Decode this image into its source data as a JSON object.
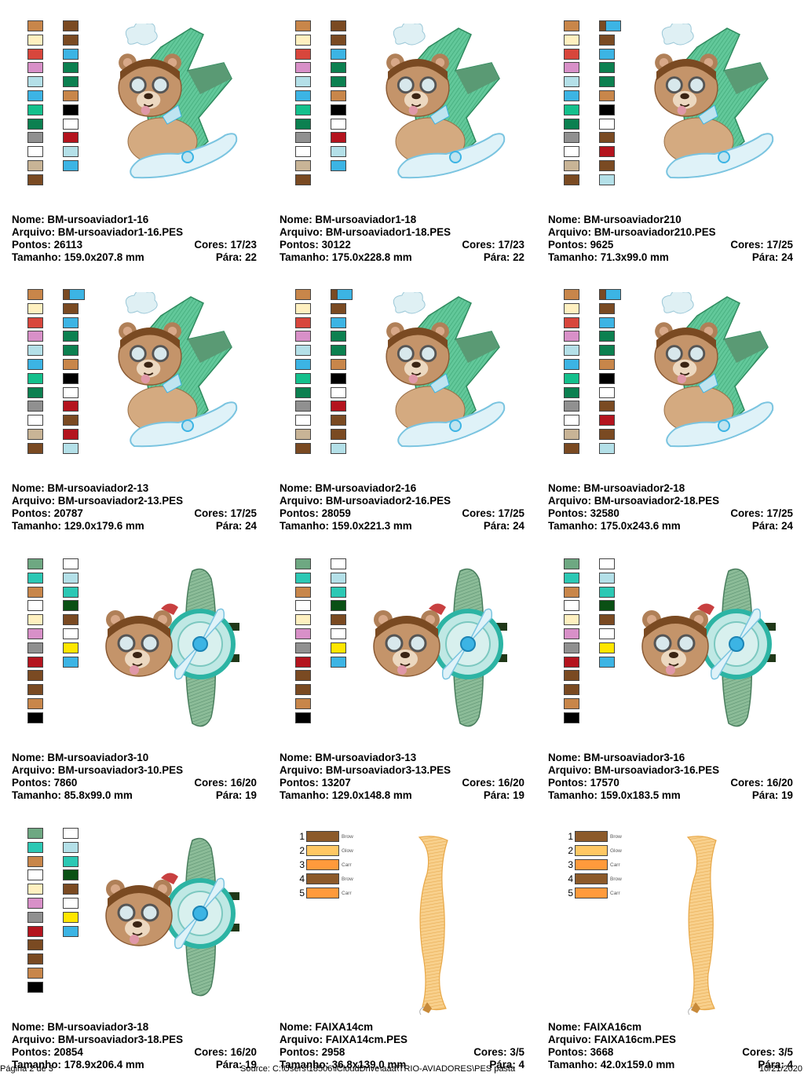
{
  "designs": [
    {
      "nome_label": "Nome:",
      "nome": "BM-ursoaviador1-16",
      "arquivo_label": "Arquivo:",
      "arquivo": "BM-ursoaviador1-16.PES",
      "pontos_label": "Pontos:",
      "pontos": "26113",
      "cores_label": "Cores:",
      "cores": "17/23",
      "tamanho_label": "Tamanho:",
      "tamanho": "159.0x207.8 mm",
      "para_label": "Pára:",
      "para": "22",
      "art": "bear-plane-diagonal",
      "swatches": [
        [
          "#c8864a",
          "#fff0c0",
          "#d8463c",
          "#d890c8",
          "#b4e0e8",
          "#3cb4e4",
          "#14c08c",
          "#0c8050",
          "#909090",
          "#ffffff",
          "#c8b496",
          "#7a4a22"
        ],
        [
          "#7a4a22",
          "#7a4a22",
          "#3cb4e4",
          "#0c8050",
          "#0c8050",
          "#c8864a",
          "#000000",
          "#ffffff",
          "#b4141e",
          "#b4e0e8",
          "#3cb4e4"
        ]
      ]
    },
    {
      "nome_label": "Nome:",
      "nome": "BM-ursoaviador1-18",
      "arquivo_label": "Arquivo:",
      "arquivo": "BM-ursoaviador1-18.PES",
      "pontos_label": "Pontos:",
      "pontos": "30122",
      "cores_label": "Cores:",
      "cores": "17/23",
      "tamanho_label": "Tamanho:",
      "tamanho": "175.0x228.8 mm",
      "para_label": "Pára:",
      "para": "22",
      "art": "bear-plane-diagonal",
      "swatches": [
        [
          "#c8864a",
          "#fff0c0",
          "#d8463c",
          "#d890c8",
          "#b4e0e8",
          "#3cb4e4",
          "#14c08c",
          "#0c8050",
          "#909090",
          "#ffffff",
          "#c8b496",
          "#7a4a22"
        ],
        [
          "#7a4a22",
          "#7a4a22",
          "#3cb4e4",
          "#0c8050",
          "#0c8050",
          "#c8864a",
          "#000000",
          "#ffffff",
          "#b4141e",
          "#b4e0e8",
          "#3cb4e4"
        ]
      ]
    },
    {
      "nome_label": "Nome:",
      "nome": "BM-ursoaviador210",
      "arquivo_label": "Arquivo:",
      "arquivo": "BM-ursoaviador210.PES",
      "pontos_label": "Pontos:",
      "pontos": "9625",
      "cores_label": "Cores:",
      "cores": "17/25",
      "tamanho_label": "Tamanho:",
      "tamanho": "71.3x99.0 mm",
      "para_label": "Pára:",
      "para": "24",
      "art": "bear-plane-diagonal",
      "swatches": [
        [
          "#c8864a",
          "#fff0c0",
          "#d8463c",
          "#d890c8",
          "#b4e0e8",
          "#3cb4e4",
          "#14c08c",
          "#0c8050",
          "#909090",
          "#ffffff",
          "#c8b496",
          "#7a4a22"
        ],
        [
          "#7a4a22",
          "#7a4a22",
          "#3cb4e4",
          "#0c8050",
          "#0c8050",
          "#c8864a",
          "#000000",
          "#ffffff",
          "#7a4a22",
          "#b4141e",
          "#7a4a22",
          "#b4e0e8"
        ],
        [
          "#3cb4e4"
        ]
      ]
    },
    {
      "nome_label": "Nome:",
      "nome": "BM-ursoaviador2-13",
      "arquivo_label": "Arquivo:",
      "arquivo": "BM-ursoaviador2-13.PES",
      "pontos_label": "Pontos:",
      "pontos": "20787",
      "cores_label": "Cores:",
      "cores": "17/25",
      "tamanho_label": "Tamanho:",
      "tamanho": "129.0x179.6 mm",
      "para_label": "Pára:",
      "para": "24",
      "art": "bear-plane-diagonal",
      "swatches": [
        [
          "#c8864a",
          "#fff0c0",
          "#d8463c",
          "#d890c8",
          "#b4e0e8",
          "#3cb4e4",
          "#14c08c",
          "#0c8050",
          "#909090",
          "#ffffff",
          "#c8b496",
          "#7a4a22"
        ],
        [
          "#7a4a22",
          "#7a4a22",
          "#3cb4e4",
          "#0c8050",
          "#0c8050",
          "#c8864a",
          "#000000",
          "#ffffff",
          "#b4141e",
          "#7a4a22",
          "#b4141e",
          "#b4e0e8"
        ],
        [
          "#3cb4e4"
        ]
      ]
    },
    {
      "nome_label": "Nome:",
      "nome": "BM-ursoaviador2-16",
      "arquivo_label": "Arquivo:",
      "arquivo": "BM-ursoaviador2-16.PES",
      "pontos_label": "Pontos:",
      "pontos": "28059",
      "cores_label": "Cores:",
      "cores": "17/25",
      "tamanho_label": "Tamanho:",
      "tamanho": "159.0x221.3 mm",
      "para_label": "Pára:",
      "para": "24",
      "art": "bear-plane-diagonal",
      "swatches": [
        [
          "#c8864a",
          "#fff0c0",
          "#d8463c",
          "#d890c8",
          "#b4e0e8",
          "#3cb4e4",
          "#14c08c",
          "#0c8050",
          "#909090",
          "#ffffff",
          "#c8b496",
          "#7a4a22"
        ],
        [
          "#7a4a22",
          "#7a4a22",
          "#3cb4e4",
          "#0c8050",
          "#0c8050",
          "#c8864a",
          "#000000",
          "#ffffff",
          "#b4141e",
          "#7a4a22",
          "#7a4a22",
          "#b4e0e8"
        ],
        [
          "#3cb4e4"
        ]
      ]
    },
    {
      "nome_label": "Nome:",
      "nome": "BM-ursoaviador2-18",
      "arquivo_label": "Arquivo:",
      "arquivo": "BM-ursoaviador2-18.PES",
      "pontos_label": "Pontos:",
      "pontos": "32580",
      "cores_label": "Cores:",
      "cores": "17/25",
      "tamanho_label": "Tamanho:",
      "tamanho": "175.0x243.6 mm",
      "para_label": "Pára:",
      "para": "24",
      "art": "bear-plane-diagonal",
      "swatches": [
        [
          "#c8864a",
          "#fff0c0",
          "#d8463c",
          "#d890c8",
          "#b4e0e8",
          "#3cb4e4",
          "#14c08c",
          "#0c8050",
          "#909090",
          "#ffffff",
          "#c8b496",
          "#7a4a22"
        ],
        [
          "#7a4a22",
          "#7a4a22",
          "#3cb4e4",
          "#0c8050",
          "#0c8050",
          "#c8864a",
          "#000000",
          "#ffffff",
          "#7a4a22",
          "#b4141e",
          "#7a4a22",
          "#b4e0e8"
        ],
        [
          "#3cb4e4"
        ]
      ]
    },
    {
      "nome_label": "Nome:",
      "nome": "BM-ursoaviador3-10",
      "arquivo_label": "Arquivo:",
      "arquivo": "BM-ursoaviador3-10.PES",
      "pontos_label": "Pontos:",
      "pontos": "7860",
      "cores_label": "Cores:",
      "cores": "16/20",
      "tamanho_label": "Tamanho:",
      "tamanho": "85.8x99.0 mm",
      "para_label": "Pára:",
      "para": "19",
      "art": "bear-plane-front",
      "swatches": [
        [
          "#6ea882",
          "#2cc8b4",
          "#c8864a",
          "#ffffff",
          "#fff0c0",
          "#d890c8",
          "#909090",
          "#b4141e",
          "#7a4a22",
          "#7a4a22",
          "#c8864a",
          "#000000"
        ],
        [
          "#ffffff",
          "#b4e0e8",
          "#2cc8b4",
          "#0a5014",
          "#7a4a22",
          "#ffffff",
          "#ffe600",
          "#3cb4e4"
        ]
      ]
    },
    {
      "nome_label": "Nome:",
      "nome": "BM-ursoaviador3-13",
      "arquivo_label": "Arquivo:",
      "arquivo": "BM-ursoaviador3-13.PES",
      "pontos_label": "Pontos:",
      "pontos": "13207",
      "cores_label": "Cores:",
      "cores": "16/20",
      "tamanho_label": "Tamanho:",
      "tamanho": "129.0x148.8 mm",
      "para_label": "Pára:",
      "para": "19",
      "art": "bear-plane-front",
      "swatches": [
        [
          "#6ea882",
          "#2cc8b4",
          "#c8864a",
          "#ffffff",
          "#fff0c0",
          "#d890c8",
          "#909090",
          "#b4141e",
          "#7a4a22",
          "#7a4a22",
          "#c8864a",
          "#000000"
        ],
        [
          "#ffffff",
          "#b4e0e8",
          "#2cc8b4",
          "#0a5014",
          "#7a4a22",
          "#ffffff",
          "#ffe600",
          "#3cb4e4"
        ]
      ]
    },
    {
      "nome_label": "Nome:",
      "nome": "BM-ursoaviador3-16",
      "arquivo_label": "Arquivo:",
      "arquivo": "BM-ursoaviador3-16.PES",
      "pontos_label": "Pontos:",
      "pontos": "17570",
      "cores_label": "Cores:",
      "cores": "16/20",
      "tamanho_label": "Tamanho:",
      "tamanho": "159.0x183.5 mm",
      "para_label": "Pára:",
      "para": "19",
      "art": "bear-plane-front",
      "swatches": [
        [
          "#6ea882",
          "#2cc8b4",
          "#c8864a",
          "#ffffff",
          "#fff0c0",
          "#d890c8",
          "#909090",
          "#b4141e",
          "#7a4a22",
          "#7a4a22",
          "#c8864a",
          "#000000"
        ],
        [
          "#ffffff",
          "#b4e0e8",
          "#2cc8b4",
          "#0a5014",
          "#7a4a22",
          "#ffffff",
          "#ffe600",
          "#3cb4e4"
        ]
      ]
    },
    {
      "nome_label": "Nome:",
      "nome": "BM-ursoaviador3-18",
      "arquivo_label": "Arquivo:",
      "arquivo": "BM-ursoaviador3-18.PES",
      "pontos_label": "Pontos:",
      "pontos": "20854",
      "cores_label": "Cores:",
      "cores": "16/20",
      "tamanho_label": "Tamanho:",
      "tamanho": "178.9x206.4 mm",
      "para_label": "Pára:",
      "para": "19",
      "art": "bear-plane-front",
      "swatches": [
        [
          "#6ea882",
          "#2cc8b4",
          "#c8864a",
          "#ffffff",
          "#fff0c0",
          "#d890c8",
          "#909090",
          "#b4141e",
          "#7a4a22",
          "#7a4a22",
          "#c8864a",
          "#000000"
        ],
        [
          "#ffffff",
          "#b4e0e8",
          "#2cc8b4",
          "#0a5014",
          "#7a4a22",
          "#ffffff",
          "#ffe600",
          "#3cb4e4"
        ]
      ]
    },
    {
      "nome_label": "Nome:",
      "nome": "FAIXA14cm",
      "arquivo_label": "Arquivo:",
      "arquivo": "FAIXA14cm.PES",
      "pontos_label": "Pontos:",
      "pontos": "2958",
      "cores_label": "Cores:",
      "cores": "3/5",
      "tamanho_label": "Tamanho:",
      "tamanho": "36.8x139.0 mm",
      "para_label": "Pára:",
      "para": "4",
      "art": "banner",
      "numbered": [
        {
          "n": "1",
          "color": "#8c5a2a",
          "label": "Brow"
        },
        {
          "n": "2",
          "color": "#ffc864",
          "label": "Glow"
        },
        {
          "n": "3",
          "color": "#ff9a3c",
          "label": "Carr"
        },
        {
          "n": "4",
          "color": "#8c5a2a",
          "label": "Brow"
        },
        {
          "n": "5",
          "color": "#ff9a3c",
          "label": "Carr"
        }
      ]
    },
    {
      "nome_label": "Nome:",
      "nome": "FAIXA16cm",
      "arquivo_label": "Arquivo:",
      "arquivo": "FAIXA16cm.PES",
      "pontos_label": "Pontos:",
      "pontos": "3668",
      "cores_label": "Cores:",
      "cores": "3/5",
      "tamanho_label": "Tamanho:",
      "tamanho": "42.0x159.0 mm",
      "para_label": "Pára:",
      "para": "4",
      "art": "banner",
      "numbered": [
        {
          "n": "1",
          "color": "#8c5a2a",
          "label": "Brow"
        },
        {
          "n": "2",
          "color": "#ffc864",
          "label": "Glow"
        },
        {
          "n": "3",
          "color": "#ff9a3c",
          "label": "Carr"
        },
        {
          "n": "4",
          "color": "#8c5a2a",
          "label": "Brow"
        },
        {
          "n": "5",
          "color": "#ff9a3c",
          "label": "Carr"
        }
      ]
    }
  ],
  "footer": {
    "page": "Página 2 de 3",
    "source": "Source:  C:\\Users\\18506\\iCloudDrive\\aaa\\TRIO-AVIADORES\\PES pasta",
    "date": "10/21/2020"
  }
}
